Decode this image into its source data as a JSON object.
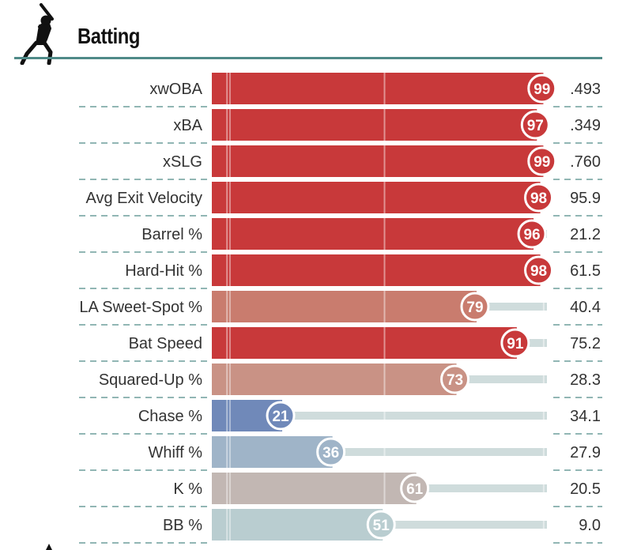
{
  "header": {
    "title": "Batting",
    "icon": "batter-silhouette-icon"
  },
  "colors": {
    "rule": "#4f8a88",
    "track": "#cfdcdc",
    "hot": "#c8393a",
    "warm": "#c97c6e",
    "light_warm": "#c99285",
    "neutral": "#c2b7b3",
    "cool_light": "#b9cdd0",
    "cool": "#9fb4c8",
    "cold": "#7089b9"
  },
  "chart_data": {
    "type": "bar",
    "orientation": "horizontal",
    "xlim": [
      0,
      100
    ],
    "series": [
      {
        "categories": [
          "xwOBA",
          "xBA",
          "xSLG",
          "Avg Exit Velocity",
          "Barrel %",
          "Hard-Hit %",
          "LA Sweet-Spot %",
          "Bat Speed",
          "Squared-Up %",
          "Chase %",
          "Whiff %",
          "K %",
          "BB %"
        ],
        "values": [
          99,
          97,
          99,
          98,
          96,
          98,
          79,
          91,
          73,
          21,
          36,
          61,
          51
        ],
        "stat_values": [
          ".493",
          ".349",
          ".760",
          "95.9",
          "21.2",
          "61.5",
          "40.4",
          "75.2",
          "28.3",
          "34.1",
          "27.9",
          "20.5",
          "9.0"
        ]
      }
    ]
  }
}
